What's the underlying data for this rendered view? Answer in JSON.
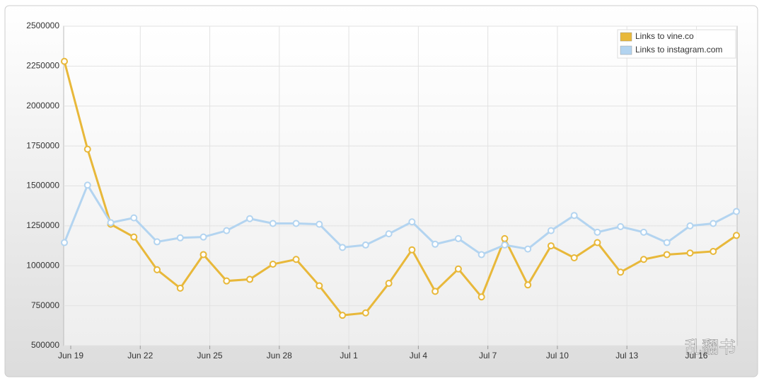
{
  "chart_data": {
    "type": "line",
    "categories": [
      "Jun 19",
      null,
      null,
      "Jun 22",
      null,
      null,
      "Jun 25",
      null,
      null,
      "Jun 28",
      null,
      null,
      "Jul 1",
      null,
      null,
      "Jul 4",
      null,
      null,
      "Jul 7",
      null,
      null,
      "Jul 10",
      null,
      null,
      "Jul 13",
      null,
      null,
      "Jul 16",
      null,
      null
    ],
    "series": [
      {
        "name": "Links to vine.co",
        "color": "#e8b83a",
        "values": [
          2280000,
          1730000,
          1260000,
          1180000,
          975000,
          860000,
          1070000,
          905000,
          915000,
          1010000,
          1040000,
          875000,
          690000,
          705000,
          890000,
          1100000,
          840000,
          980000,
          805000,
          1170000,
          880000,
          1125000,
          1050000,
          1145000,
          960000,
          1040000,
          1070000,
          1080000,
          1090000,
          1190000
        ]
      },
      {
        "name": "Links to instagram.com",
        "color": "#b3d4f0",
        "values": [
          1145000,
          1505000,
          1270000,
          1300000,
          1150000,
          1175000,
          1180000,
          1220000,
          1295000,
          1265000,
          1265000,
          1260000,
          1115000,
          1130000,
          1200000,
          1275000,
          1135000,
          1170000,
          1070000,
          1130000,
          1105000,
          1220000,
          1315000,
          1210000,
          1245000,
          1210000,
          1145000,
          1250000,
          1265000,
          1340000
        ]
      }
    ],
    "ylim": [
      500000,
      2500000
    ],
    "yticks": [
      500000,
      750000,
      1000000,
      1250000,
      1500000,
      1750000,
      2000000,
      2250000,
      2500000
    ],
    "grid": true,
    "legend": "top-right",
    "watermark": "乱翻书"
  }
}
